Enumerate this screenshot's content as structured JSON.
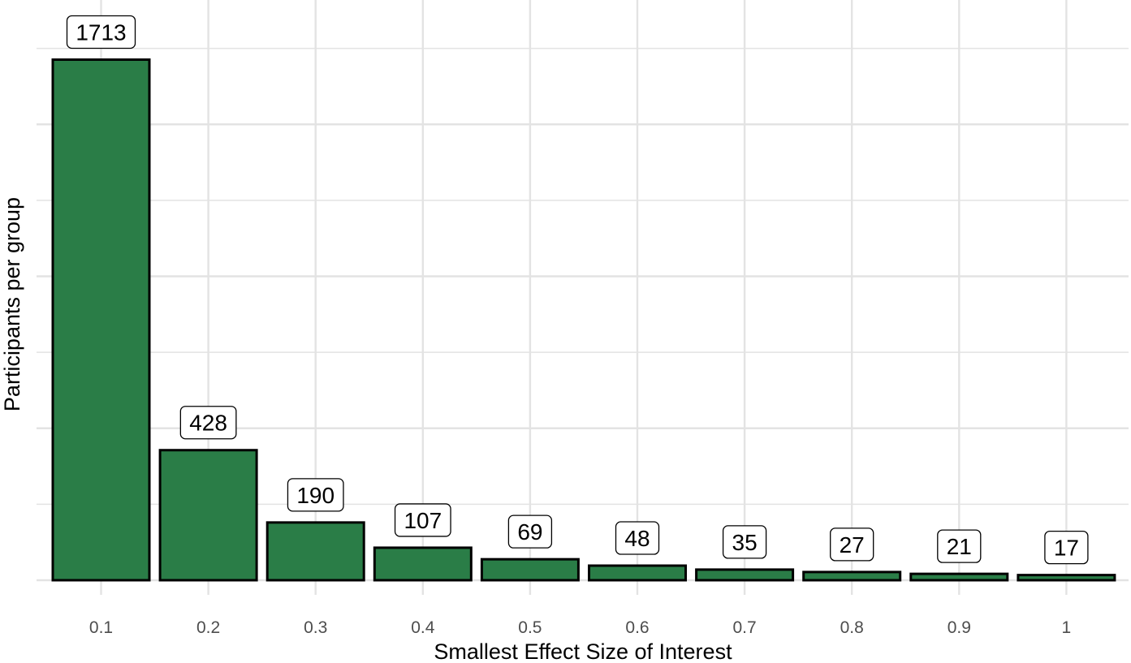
{
  "chart_data": {
    "type": "bar",
    "categories": [
      "0.1",
      "0.2",
      "0.3",
      "0.4",
      "0.5",
      "0.6",
      "0.7",
      "0.8",
      "0.9",
      "1"
    ],
    "values": [
      1713,
      428,
      190,
      107,
      69,
      48,
      35,
      27,
      21,
      17
    ],
    "data_labels": [
      "1713",
      "428",
      "190",
      "107",
      "69",
      "48",
      "35",
      "27",
      "21",
      "17"
    ],
    "xlabel": "Smallest Effect Size of Interest",
    "ylabel": "Participants per group",
    "ylim": [
      0,
      1900
    ],
    "y_ticks_labeled": false,
    "grid": true,
    "colors": {
      "bar_fill": "#2a7d47",
      "bar_stroke": "#000000",
      "grid": "#e3e3e3",
      "label_box_fill": "#ffffff",
      "label_box_stroke": "#000000"
    }
  }
}
